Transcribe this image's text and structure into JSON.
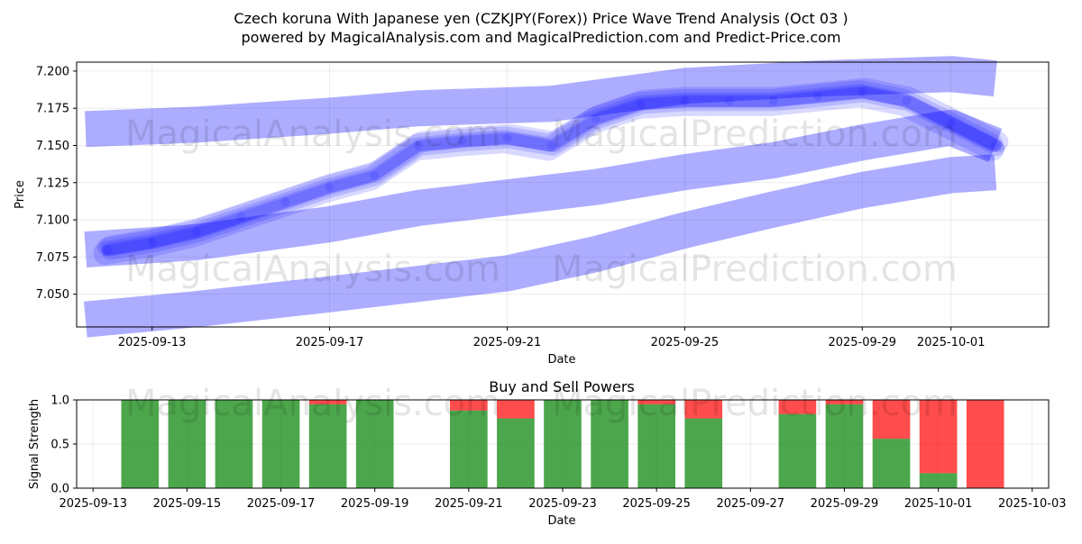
{
  "title_line1": "Czech koruna With Japanese yen (CZKJPY(Forex)) Price Wave Trend Analysis (Oct 03 )",
  "title_line2": "powered by MagicalAnalysis.com and MagicalPrediction.com and Predict-Price.com",
  "watermarks": [
    "MagicalAnalysis.com",
    "MagicalPrediction.com"
  ],
  "colors": {
    "wave": "#0000ff",
    "buy": "#008000",
    "sell": "#ff0000",
    "grid": "#b0b0b0"
  },
  "chart_data": [
    {
      "type": "line",
      "title": "",
      "xlabel": "Date",
      "ylabel": "Price",
      "xlim": [
        "2025-09-11.3",
        "2025-10-03.2"
      ],
      "ylim": [
        7.028,
        7.206
      ],
      "x_ticks": [
        "2025-09-13",
        "2025-09-17",
        "2025-09-21",
        "2025-09-25",
        "2025-09-29",
        "2025-10-01"
      ],
      "y_ticks": [
        "7.050",
        "7.075",
        "7.100",
        "7.125",
        "7.150",
        "7.175",
        "7.200"
      ],
      "price_series": {
        "name": "Price",
        "x": [
          "2025-09-12",
          "2025-09-13",
          "2025-09-14",
          "2025-09-15",
          "2025-09-16",
          "2025-09-17",
          "2025-09-18",
          "2025-09-19",
          "2025-09-20",
          "2025-09-21",
          "2025-09-22",
          "2025-09-23",
          "2025-09-24",
          "2025-09-25",
          "2025-09-26",
          "2025-09-27",
          "2025-09-28",
          "2025-09-29",
          "2025-09-30",
          "2025-10-01",
          "2025-10-02"
        ],
        "values": [
          7.08,
          7.085,
          7.092,
          7.102,
          7.112,
          7.122,
          7.13,
          7.15,
          7.153,
          7.155,
          7.15,
          7.168,
          7.178,
          7.18,
          7.18,
          7.18,
          7.183,
          7.186,
          7.18,
          7.165,
          7.15
        ]
      },
      "trend_bands": [
        {
          "name": "Upper band",
          "x": [
            "2025-09-11.5",
            "2025-09-14",
            "2025-09-17",
            "2025-09-19",
            "2025-09-22",
            "2025-09-25",
            "2025-09-28",
            "2025-10-01",
            "2025-10-02"
          ],
          "values": [
            7.161,
            7.164,
            7.17,
            7.175,
            7.178,
            7.19,
            7.195,
            7.198,
            7.195
          ]
        },
        {
          "name": "Middle band",
          "x": [
            "2025-09-11.5",
            "2025-09-14",
            "2025-09-17",
            "2025-09-19",
            "2025-09-21",
            "2025-09-23",
            "2025-09-25",
            "2025-09-27",
            "2025-09-29",
            "2025-10-01",
            "2025-10-02"
          ],
          "values": [
            7.08,
            7.085,
            7.097,
            7.108,
            7.115,
            7.122,
            7.132,
            7.14,
            7.152,
            7.162,
            7.15
          ]
        },
        {
          "name": "Lower band",
          "x": [
            "2025-09-11.5",
            "2025-09-14",
            "2025-09-17",
            "2025-09-19",
            "2025-09-21",
            "2025-09-23",
            "2025-09-25",
            "2025-09-27",
            "2025-09-29",
            "2025-10-01",
            "2025-10-02"
          ],
          "values": [
            7.033,
            7.04,
            7.05,
            7.057,
            7.064,
            7.077,
            7.093,
            7.107,
            7.12,
            7.13,
            7.132
          ]
        }
      ]
    },
    {
      "type": "bar",
      "title": "Buy and Sell Powers",
      "xlabel": "Date",
      "ylabel": "Signal Strength",
      "ylim": [
        0,
        1
      ],
      "xlim": [
        "2025-09-13",
        "2025-10-03"
      ],
      "x_ticks": [
        "2025-09-13",
        "2025-09-15",
        "2025-09-17",
        "2025-09-19",
        "2025-09-21",
        "2025-09-23",
        "2025-09-25",
        "2025-09-27",
        "2025-09-29",
        "2025-10-01",
        "2025-10-03"
      ],
      "y_ticks": [
        "0.0",
        "0.5",
        "1.0"
      ],
      "categories": [
        "2025-09-14",
        "2025-09-15",
        "2025-09-16",
        "2025-09-17",
        "2025-09-18",
        "2025-09-19",
        "2025-09-21",
        "2025-09-22",
        "2025-09-23",
        "2025-09-24",
        "2025-09-25",
        "2025-09-26",
        "2025-09-28",
        "2025-09-29",
        "2025-09-30",
        "2025-10-01",
        "2025-10-02"
      ],
      "series": [
        {
          "name": "Buy",
          "values": [
            1.0,
            1.0,
            1.0,
            1.0,
            0.95,
            1.0,
            0.88,
            0.79,
            1.0,
            1.0,
            0.95,
            0.79,
            0.84,
            0.95,
            0.56,
            0.17,
            0.0
          ]
        },
        {
          "name": "Sell",
          "values": [
            0.0,
            0.0,
            0.0,
            0.0,
            0.05,
            0.0,
            0.12,
            0.21,
            0.0,
            0.0,
            0.05,
            0.21,
            0.16,
            0.05,
            0.44,
            0.83,
            1.0
          ]
        }
      ]
    }
  ]
}
